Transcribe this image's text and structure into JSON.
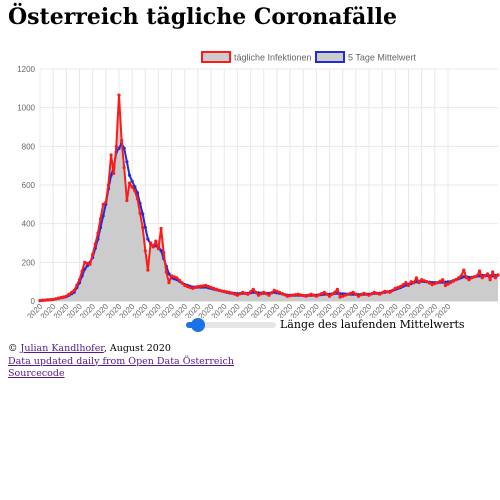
{
  "page": {
    "title": "Österreich tägliche Coronafälle"
  },
  "controls": {
    "slider_label": "Länge des laufenden Mittelwerts",
    "slider_value": 5,
    "slider_min": 1,
    "slider_max": 30
  },
  "footer": {
    "copyright_prefix": "© ",
    "author": "Julian Kandlhofer",
    "copyright_suffix": ", August 2020",
    "data_link": "Data updated daily from Open Data Österreich",
    "source_link": "Sourcecode"
  },
  "colors": {
    "daily": "#ff1a1a",
    "average": "#1f2dd6",
    "area_fill": "#cccccc",
    "grid": "#e8e8e8"
  },
  "chart_data": {
    "type": "line",
    "title": "",
    "xlabel": "",
    "ylabel": "",
    "ylim": [
      0,
      1200
    ],
    "yticks": [
      0,
      200,
      400,
      600,
      800,
      1000,
      1200
    ],
    "x_tick_labels": [
      "25.02.2020",
      "01.03.2020",
      "06.03.2020",
      "11.03.2020",
      "16.03.2020",
      "21.03.2020",
      "26.03.2020",
      "31.03.2020",
      "05.04.2020",
      "10.04.2020",
      "15.04.2020",
      "20.04.2020",
      "25.04.2020",
      "30.04.2020",
      "05.05.2020",
      "10.05.2020",
      "15.05.2020",
      "20.05.2020",
      "25.05.2020",
      "30.05.2020",
      "04.06.2020",
      "09.06.2020",
      "14.06.2020",
      "19.06.2020",
      "24.06.2020",
      "29.06.2020",
      "04.07.2020",
      "09.07.2020",
      "14.07.2020",
      "19.07.2020",
      "24.07.2020",
      "29.07.2020"
    ],
    "grid": true,
    "legend_position": "top-center",
    "x_start_label": "25.02.2020",
    "series": [
      {
        "name": "tägliche Infektionen",
        "color": "#ff1a1a",
        "fill": "#cccccc",
        "anchors": [
          [
            0,
            2
          ],
          [
            5,
            8
          ],
          [
            10,
            25
          ],
          [
            13,
            55
          ],
          [
            15,
            110
          ],
          [
            17,
            200
          ],
          [
            19,
            190
          ],
          [
            20,
            240
          ],
          [
            22,
            350
          ],
          [
            24,
            500
          ],
          [
            25,
            510
          ],
          [
            26,
            600
          ],
          [
            27,
            755
          ],
          [
            28,
            660
          ],
          [
            29,
            800
          ],
          [
            30,
            1065
          ],
          [
            31,
            830
          ],
          [
            32,
            690
          ],
          [
            33,
            520
          ],
          [
            34,
            610
          ],
          [
            36,
            570
          ],
          [
            37,
            530
          ],
          [
            39,
            380
          ],
          [
            40,
            260
          ],
          [
            41,
            160
          ],
          [
            42,
            300
          ],
          [
            43,
            280
          ],
          [
            44,
            310
          ],
          [
            45,
            270
          ],
          [
            46,
            375
          ],
          [
            47,
            250
          ],
          [
            48,
            150
          ],
          [
            49,
            95
          ],
          [
            50,
            130
          ],
          [
            52,
            120
          ],
          [
            55,
            80
          ],
          [
            58,
            65
          ],
          [
            60,
            75
          ],
          [
            63,
            80
          ],
          [
            65,
            70
          ],
          [
            68,
            55
          ],
          [
            72,
            45
          ],
          [
            75,
            30
          ],
          [
            77,
            45
          ],
          [
            79,
            35
          ],
          [
            81,
            60
          ],
          [
            83,
            30
          ],
          [
            85,
            45
          ],
          [
            87,
            30
          ],
          [
            89,
            55
          ],
          [
            91,
            45
          ],
          [
            94,
            25
          ],
          [
            98,
            35
          ],
          [
            101,
            25
          ],
          [
            103,
            35
          ],
          [
            105,
            25
          ],
          [
            108,
            45
          ],
          [
            110,
            25
          ],
          [
            112,
            45
          ],
          [
            113,
            60
          ],
          [
            114,
            20
          ],
          [
            117,
            35
          ],
          [
            119,
            45
          ],
          [
            121,
            25
          ],
          [
            123,
            40
          ],
          [
            125,
            30
          ],
          [
            127,
            45
          ],
          [
            129,
            35
          ],
          [
            131,
            50
          ],
          [
            133,
            45
          ],
          [
            135,
            65
          ],
          [
            137,
            75
          ],
          [
            139,
            95
          ],
          [
            140,
            80
          ],
          [
            141,
            100
          ],
          [
            142,
            95
          ],
          [
            143,
            120
          ],
          [
            144,
            95
          ],
          [
            145,
            110
          ],
          [
            147,
            100
          ],
          [
            149,
            85
          ],
          [
            151,
            95
          ],
          [
            153,
            110
          ],
          [
            154,
            80
          ],
          [
            156,
            95
          ],
          [
            158,
            110
          ],
          [
            160,
            130
          ],
          [
            161,
            160
          ],
          [
            162,
            120
          ],
          [
            163,
            110
          ],
          [
            164,
            120
          ],
          [
            166,
            130
          ],
          [
            167,
            155
          ],
          [
            168,
            120
          ],
          [
            170,
            140
          ],
          [
            171,
            110
          ],
          [
            172,
            150
          ],
          [
            173,
            120
          ],
          [
            174,
            135
          ]
        ]
      },
      {
        "name": "5 Tage Mittelwert",
        "color": "#1f2dd6",
        "anchors": [
          [
            0,
            2
          ],
          [
            5,
            8
          ],
          [
            10,
            22
          ],
          [
            13,
            45
          ],
          [
            15,
            95
          ],
          [
            17,
            165
          ],
          [
            19,
            200
          ],
          [
            20,
            225
          ],
          [
            22,
            320
          ],
          [
            24,
            440
          ],
          [
            25,
            500
          ],
          [
            26,
            580
          ],
          [
            27,
            650
          ],
          [
            28,
            690
          ],
          [
            29,
            770
          ],
          [
            30,
            790
          ],
          [
            31,
            815
          ],
          [
            32,
            790
          ],
          [
            33,
            720
          ],
          [
            34,
            650
          ],
          [
            36,
            590
          ],
          [
            37,
            560
          ],
          [
            39,
            450
          ],
          [
            40,
            380
          ],
          [
            41,
            320
          ],
          [
            42,
            295
          ],
          [
            43,
            285
          ],
          [
            44,
            285
          ],
          [
            45,
            280
          ],
          [
            46,
            260
          ],
          [
            47,
            220
          ],
          [
            48,
            180
          ],
          [
            49,
            140
          ],
          [
            50,
            120
          ],
          [
            52,
            110
          ],
          [
            55,
            85
          ],
          [
            58,
            72
          ],
          [
            60,
            72
          ],
          [
            63,
            72
          ],
          [
            65,
            65
          ],
          [
            68,
            55
          ],
          [
            72,
            42
          ],
          [
            75,
            38
          ],
          [
            77,
            40
          ],
          [
            79,
            40
          ],
          [
            81,
            45
          ],
          [
            83,
            42
          ],
          [
            85,
            40
          ],
          [
            87,
            40
          ],
          [
            89,
            45
          ],
          [
            91,
            40
          ],
          [
            94,
            30
          ],
          [
            98,
            30
          ],
          [
            101,
            28
          ],
          [
            103,
            30
          ],
          [
            105,
            30
          ],
          [
            108,
            35
          ],
          [
            110,
            35
          ],
          [
            112,
            40
          ],
          [
            113,
            40
          ],
          [
            114,
            38
          ],
          [
            117,
            35
          ],
          [
            119,
            35
          ],
          [
            121,
            33
          ],
          [
            123,
            35
          ],
          [
            125,
            35
          ],
          [
            127,
            40
          ],
          [
            129,
            40
          ],
          [
            131,
            45
          ],
          [
            133,
            50
          ],
          [
            135,
            60
          ],
          [
            137,
            70
          ],
          [
            139,
            82
          ],
          [
            140,
            86
          ],
          [
            141,
            90
          ],
          [
            142,
            95
          ],
          [
            143,
            100
          ],
          [
            144,
            102
          ],
          [
            145,
            102
          ],
          [
            147,
            100
          ],
          [
            149,
            95
          ],
          [
            151,
            95
          ],
          [
            153,
            98
          ],
          [
            154,
            98
          ],
          [
            156,
            100
          ],
          [
            158,
            110
          ],
          [
            160,
            120
          ],
          [
            161,
            125
          ],
          [
            162,
            125
          ],
          [
            163,
            122
          ],
          [
            164,
            122
          ],
          [
            166,
            128
          ],
          [
            167,
            130
          ],
          [
            168,
            132
          ],
          [
            170,
            132
          ],
          [
            171,
            130
          ],
          [
            172,
            130
          ],
          [
            173,
            132
          ],
          [
            174,
            134
          ]
        ]
      }
    ]
  }
}
